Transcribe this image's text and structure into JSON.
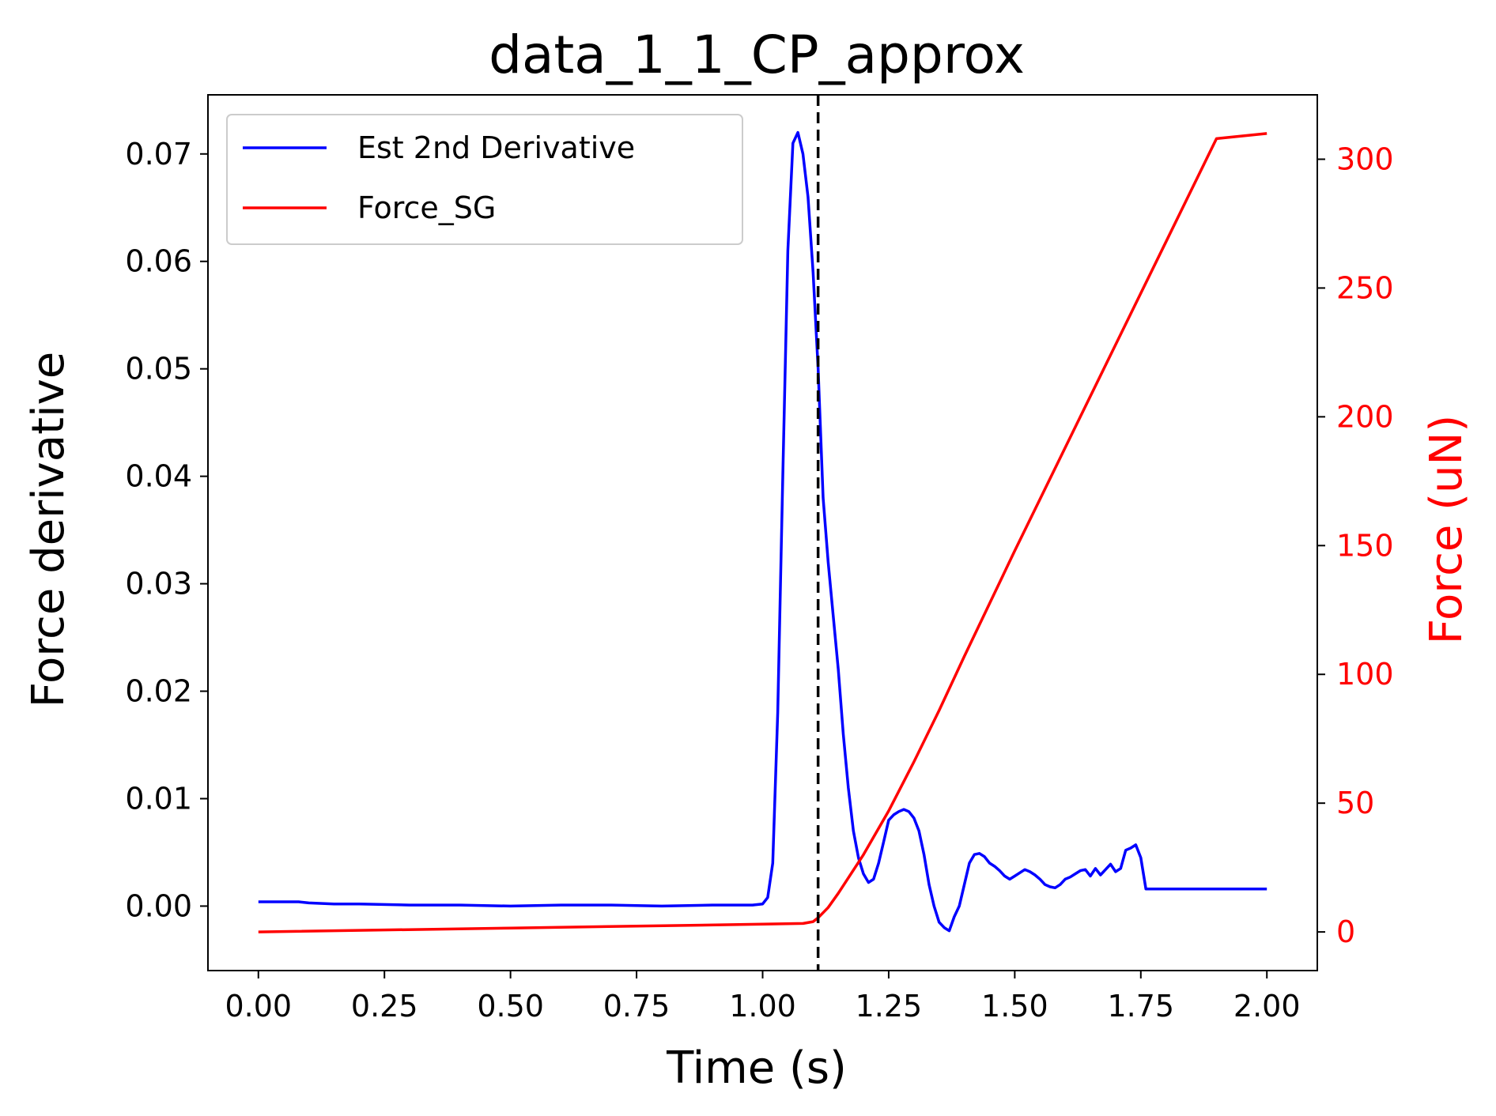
{
  "chart_data": {
    "type": "line",
    "title": "data_1_1_CP_approx",
    "xlabel": "Time (s)",
    "ylabel": "Force derivative",
    "y2label": "Force (uN)",
    "xlim": [
      -0.1,
      2.1
    ],
    "ylim": [
      -0.006,
      0.0755
    ],
    "y2lim": [
      -15,
      325
    ],
    "xticks": [
      "0.00",
      "0.25",
      "0.50",
      "0.75",
      "1.00",
      "1.25",
      "1.50",
      "1.75",
      "2.00"
    ],
    "yticks": [
      "0.00",
      "0.01",
      "0.02",
      "0.03",
      "0.04",
      "0.05",
      "0.06",
      "0.07"
    ],
    "y2ticks": [
      "0",
      "50",
      "100",
      "150",
      "200",
      "250",
      "300"
    ],
    "vline_x": 1.11,
    "legend_position": "upper-left",
    "series": [
      {
        "name": "Est 2nd Derivative",
        "axis": "left",
        "color": "#0000ff",
        "x": [
          0.0,
          0.08,
          0.1,
          0.15,
          0.2,
          0.3,
          0.4,
          0.5,
          0.6,
          0.7,
          0.8,
          0.9,
          0.98,
          1.0,
          1.01,
          1.02,
          1.03,
          1.04,
          1.05,
          1.06,
          1.07,
          1.08,
          1.09,
          1.1,
          1.11,
          1.12,
          1.13,
          1.14,
          1.15,
          1.16,
          1.17,
          1.18,
          1.19,
          1.2,
          1.21,
          1.22,
          1.23,
          1.24,
          1.25,
          1.26,
          1.27,
          1.28,
          1.29,
          1.3,
          1.31,
          1.32,
          1.33,
          1.34,
          1.35,
          1.36,
          1.37,
          1.38,
          1.39,
          1.4,
          1.41,
          1.42,
          1.43,
          1.44,
          1.45,
          1.46,
          1.47,
          1.48,
          1.49,
          1.5,
          1.51,
          1.52,
          1.53,
          1.54,
          1.55,
          1.56,
          1.57,
          1.58,
          1.59,
          1.6,
          1.61,
          1.62,
          1.63,
          1.64,
          1.65,
          1.66,
          1.67,
          1.68,
          1.69,
          1.7,
          1.71,
          1.72,
          1.73,
          1.74,
          1.75,
          1.76,
          1.77,
          1.78,
          1.79,
          1.8,
          1.81,
          1.82,
          1.83,
          1.84,
          1.85,
          1.86,
          1.87,
          1.88,
          1.89,
          1.9,
          1.91,
          1.92,
          1.925,
          1.93,
          1.94,
          1.95,
          2.0
        ],
        "values": [
          0.0004,
          0.0004,
          0.0003,
          0.0002,
          0.0002,
          0.0001,
          0.0001,
          0.0,
          0.0001,
          0.0001,
          0.0,
          0.0001,
          0.0001,
          0.0002,
          0.0008,
          0.004,
          0.018,
          0.04,
          0.061,
          0.071,
          0.072,
          0.07,
          0.066,
          0.059,
          0.05,
          0.038,
          0.032,
          0.027,
          0.022,
          0.016,
          0.011,
          0.007,
          0.0045,
          0.003,
          0.0022,
          0.0025,
          0.004,
          0.006,
          0.008,
          0.0085,
          0.0088,
          0.009,
          0.0088,
          0.0082,
          0.007,
          0.0048,
          0.002,
          0.0,
          -0.0015,
          -0.002,
          -0.0023,
          -0.001,
          0.0,
          0.002,
          0.004,
          0.0048,
          0.0049,
          0.0046,
          0.004,
          0.0037,
          0.0033,
          0.0028,
          0.0025,
          0.0028,
          0.0031,
          0.0034,
          0.0032,
          0.0029,
          0.0025,
          0.002,
          0.0018,
          0.0017,
          0.002,
          0.0025,
          0.0027,
          0.003,
          0.0033,
          0.0034,
          0.0028,
          0.0035,
          0.0029,
          0.0034,
          0.0039,
          0.0032,
          0.0035,
          0.0052,
          0.0054,
          0.0057,
          0.0045,
          0.0016,
          0.0016,
          0.0016,
          0.0016,
          0.0016,
          0.0016,
          0.0016,
          0.0016,
          0.0016,
          0.0016,
          0.0016,
          0.0016,
          0.0016,
          0.0016,
          0.0016,
          0.0016,
          0.0016,
          0.0016,
          0.0016,
          0.0016,
          0.0016,
          0.0016
        ]
      },
      {
        "name": "Force_SG",
        "axis": "right",
        "color": "#ff0000",
        "x": [
          0.0,
          0.5,
          1.0,
          1.08,
          1.1,
          1.11,
          1.13,
          1.15,
          1.2,
          1.25,
          1.3,
          1.35,
          1.4,
          1.5,
          1.6,
          1.7,
          1.8,
          1.9,
          2.0
        ],
        "values": [
          0.0,
          1.5,
          3.0,
          3.3,
          4.0,
          5.5,
          9.5,
          15.0,
          30.0,
          47.0,
          66.0,
          86.0,
          107.0,
          148.0,
          188.0,
          228.0,
          268.0,
          308.0,
          310.0
        ]
      }
    ]
  }
}
